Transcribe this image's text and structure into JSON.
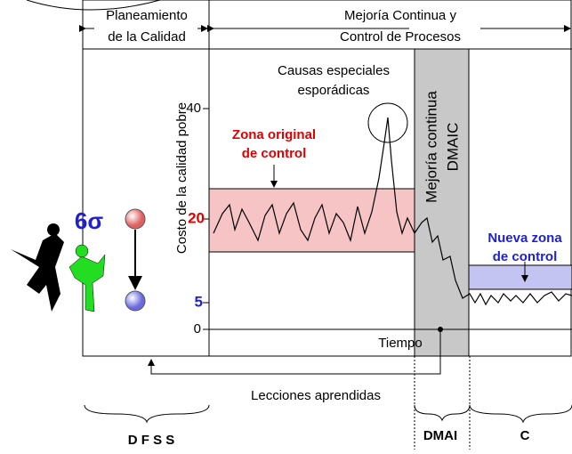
{
  "header": {
    "left": [
      "Planeamiento",
      "de la Calidad"
    ],
    "right": [
      "Mejoría Continua y",
      "Control de Procesos"
    ]
  },
  "axis": {
    "y_label": "Costo de la calidad pobre",
    "x_label": "Tiempo",
    "ticks": [
      "40",
      "20",
      "5",
      "0"
    ]
  },
  "annotations": {
    "special_causes": [
      "Causas especiales",
      "esporádicas"
    ],
    "original_zone": [
      "Zona original",
      "de control"
    ],
    "new_zone": [
      "Nueva zona",
      "de control"
    ],
    "dmaic": [
      "Mejoría continua",
      "DMAIC"
    ],
    "sigma": "6σ",
    "lessons": "Lecciones aprendidas"
  },
  "phases": [
    "D F S S",
    "DMAI",
    "C"
  ]
}
